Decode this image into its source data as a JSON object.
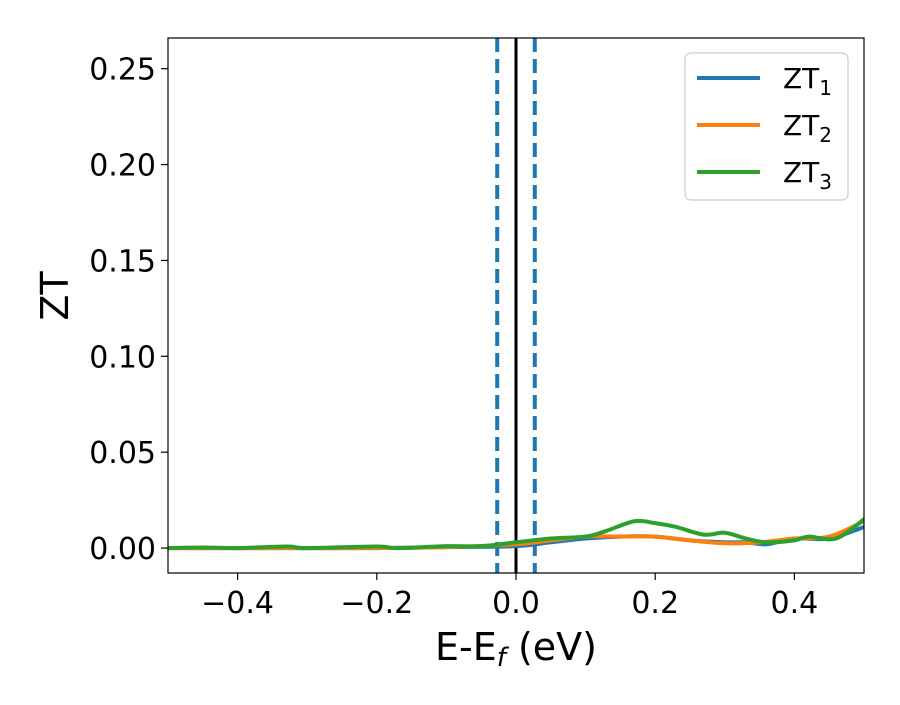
{
  "chart_data": {
    "type": "line",
    "xlabel": "E-E",
    "xlabel_sub": "f",
    "xlabel_unit": " (eV)",
    "ylabel": "ZT",
    "xlim": [
      -0.5,
      0.5
    ],
    "ylim": [
      -0.013,
      0.266
    ],
    "xticks": [
      -0.4,
      -0.2,
      0.0,
      0.2,
      0.4
    ],
    "xtick_labels": [
      "−0.4",
      "−0.2",
      "0.0",
      "0.2",
      "0.4"
    ],
    "yticks": [
      0.0,
      0.05,
      0.1,
      0.15,
      0.2,
      0.25
    ],
    "ytick_labels": [
      "0.00",
      "0.05",
      "0.10",
      "0.15",
      "0.20",
      "0.25"
    ],
    "legend_position": "top-right",
    "grid": false,
    "vlines": [
      {
        "x": 0.0,
        "style": "solid",
        "color": "#000000"
      },
      {
        "x": -0.027,
        "style": "dashed",
        "color": "#1f77b4"
      },
      {
        "x": 0.027,
        "style": "dashed",
        "color": "#1f77b4"
      }
    ],
    "series": [
      {
        "name": "ZT",
        "name_sub": "1",
        "color": "#1f77b4",
        "x": [
          -0.5,
          -0.4,
          -0.3,
          -0.2,
          -0.1,
          0.0,
          0.05,
          0.1,
          0.15,
          0.2,
          0.25,
          0.3,
          0.33,
          0.36,
          0.4,
          0.45,
          0.5
        ],
        "y": [
          0.0,
          0.0,
          0.0,
          0.0,
          0.0005,
          0.001,
          0.003,
          0.005,
          0.006,
          0.006,
          0.004,
          0.003,
          0.003,
          0.002,
          0.005,
          0.005,
          0.011
        ]
      },
      {
        "name": "ZT",
        "name_sub": "2",
        "color": "#ff7f0e",
        "x": [
          -0.5,
          -0.4,
          -0.3,
          -0.2,
          -0.1,
          0.0,
          0.05,
          0.1,
          0.15,
          0.2,
          0.25,
          0.3,
          0.35,
          0.4,
          0.45,
          0.5
        ],
        "y": [
          0.0,
          0.0,
          0.0,
          0.0,
          0.0005,
          0.002,
          0.004,
          0.006,
          0.006,
          0.006,
          0.004,
          0.0025,
          0.003,
          0.005,
          0.006,
          0.014
        ]
      },
      {
        "name": "ZT",
        "name_sub": "3",
        "color": "#2ca02c",
        "x": [
          -0.5,
          -0.45,
          -0.4,
          -0.33,
          -0.3,
          -0.2,
          -0.17,
          -0.1,
          -0.05,
          0.0,
          0.05,
          0.1,
          0.13,
          0.17,
          0.2,
          0.23,
          0.27,
          0.3,
          0.33,
          0.36,
          0.4,
          0.42,
          0.46,
          0.5
        ],
        "y": [
          0.0,
          0.0003,
          0.0,
          0.0008,
          0.0,
          0.0008,
          0.0,
          0.001,
          0.001,
          0.003,
          0.005,
          0.006,
          0.009,
          0.014,
          0.013,
          0.011,
          0.007,
          0.008,
          0.005,
          0.003,
          0.004,
          0.006,
          0.005,
          0.015
        ]
      }
    ]
  }
}
